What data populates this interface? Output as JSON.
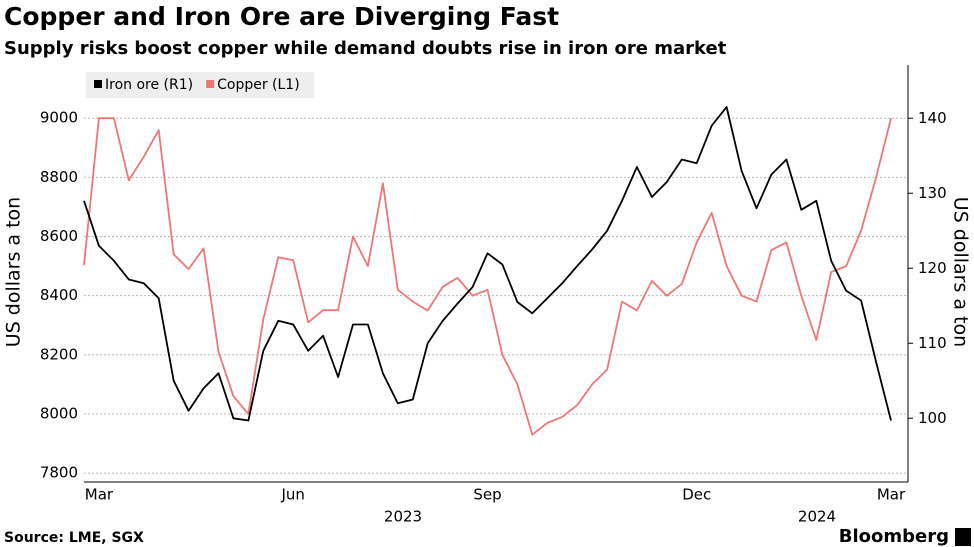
{
  "chart_data": {
    "type": "line",
    "title": "Copper and Iron Ore are Diverging Fast",
    "subtitle": "Supply risks boost copper while demand doubts rise in iron ore market",
    "ylabel": "US dollars a ton",
    "y2label": "US dollars a ton",
    "source": "Source: LME, SGX",
    "brand": "Bloomberg",
    "annotations": [
      "2023",
      "2024"
    ],
    "categories": [
      null,
      "Mar",
      null,
      null,
      null,
      null,
      null,
      null,
      null,
      null,
      null,
      null,
      null,
      null,
      "Jun",
      null,
      null,
      null,
      null,
      null,
      null,
      null,
      null,
      null,
      null,
      null,
      null,
      "Sep",
      null,
      null,
      null,
      null,
      null,
      null,
      null,
      null,
      null,
      null,
      null,
      null,
      null,
      "Dec",
      null,
      null,
      null,
      null,
      null,
      null,
      null,
      null,
      null,
      null,
      null,
      null,
      "Mar"
    ],
    "series": [
      {
        "name": "Iron ore (R1)",
        "color": "#000000",
        "axis": "y2",
        "values": [
          129,
          123,
          121,
          118.5,
          118,
          116,
          105,
          101,
          104,
          106,
          100,
          99.7,
          109,
          113,
          112.5,
          109,
          111,
          105.5,
          112.5,
          112.5,
          106,
          102,
          102.5,
          110,
          113,
          115.3,
          117.5,
          122,
          120.5,
          115.5,
          114,
          116,
          118,
          120.3,
          122.5,
          125,
          129,
          133.5,
          129.5,
          131.5,
          134.5,
          134,
          139,
          141.5,
          133,
          128,
          132.5,
          134.5,
          127.8,
          129,
          121,
          117,
          115.7,
          107.5,
          99.7
        ]
      },
      {
        "name": "Copper (L1)",
        "color": "#f07676",
        "axis": "y",
        "values": [
          8503,
          9000,
          9000,
          8790,
          8870,
          8960,
          8540,
          8490,
          8560,
          8210,
          8060,
          8000,
          8320,
          8530,
          8520,
          8310,
          8351,
          8351,
          8600,
          8500,
          8780,
          8420,
          8380,
          8350,
          8430,
          8460,
          8400,
          8420,
          8200,
          8100,
          7930,
          7970,
          7990,
          8030,
          8100,
          8150,
          8380,
          8350,
          8450,
          8400,
          8440,
          8580,
          8680,
          8500,
          8400,
          8380,
          8554,
          8580,
          8400,
          8250,
          8480,
          8500,
          8620,
          8800,
          9000
        ]
      }
    ],
    "ylim": [
      7770,
      9180
    ],
    "yticks": [
      7800,
      8000,
      8200,
      8400,
      8600,
      8800,
      9000
    ],
    "y2lim": [
      91.5,
      147.1
    ],
    "y2ticks": [
      100,
      110,
      120,
      130,
      140
    ],
    "grid": true,
    "legend": "upper left"
  }
}
